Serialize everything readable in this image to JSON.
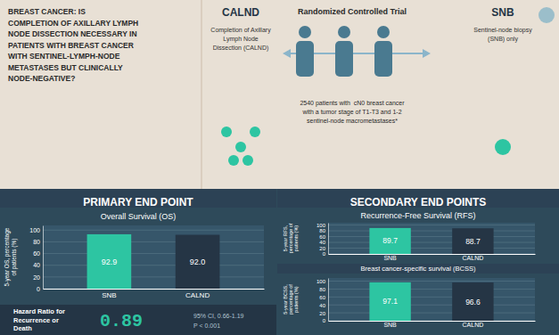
{
  "chart_data": [
    {
      "type": "bar",
      "title": "Overall Survival (OS)",
      "subtitle": "PRIMARY END POINT",
      "y_label": "5-year OS, percentage\nof patients (%)",
      "categories": [
        "SNB",
        "CALND"
      ],
      "values": [
        92.9,
        92.0
      ],
      "value_labels": [
        "92.9",
        "92.0"
      ],
      "colors": [
        "#2DC5A2",
        "#253545"
      ],
      "ylim": [
        0,
        108
      ],
      "yticks": [
        0,
        20,
        40,
        60,
        80,
        100
      ],
      "grid": true,
      "data_labels": true,
      "annotations": [
        "BREAST CANCER: IS\nCOMPLETION OF AXILLARY LYMPH\nNODE DISSECTION NECESSARY IN\nPATIENTS WITH BREAST CANCER\nWITH SENTINEL-LYMPH-NODE\nMETASTASES BUT CLINICALLY\nNODE-NEGATIVE?",
        "CALND",
        "Completion of Axillary\nLymph Node\nDissection (CALND)",
        "Randomized Controlled Trial",
        "2540 patients with  cN0 breast cancer\nwith a tumor stage of T1-T3 and 1-2\nsentinel-node macrometastases*",
        "SNB",
        "Sentinel-node biopsy\n(SNB) only",
        "Hazard Ratio for\nRecurrence or\nDeath",
        "0.89",
        "95% CI, 0.66-1.19\nP < 0.001"
      ]
    },
    {
      "type": "bar",
      "title": "Recurrence-Free Survival (RFS)",
      "subtitle": "SECONDARY END POINTS",
      "y_label": "5-year RFS,\npercentage of\npatients (%)",
      "categories": [
        "SNB",
        "CALND"
      ],
      "values": [
        89.7,
        88.7
      ],
      "value_labels": [
        "89.7",
        "88.7"
      ],
      "colors": [
        "#2DC5A2",
        "#253545"
      ],
      "ylim": [
        0,
        108
      ],
      "yticks": [
        0,
        20,
        40,
        60,
        80,
        100
      ],
      "grid": true,
      "data_labels": true
    },
    {
      "type": "bar",
      "title": "Breast cancer-specific survival (BCSS)",
      "y_label": "5-year BCSS,\npercentage of\npatients (%)",
      "categories": [
        "SNB",
        "CALND"
      ],
      "values": [
        97.1,
        96.6
      ],
      "value_labels": [
        "97.1",
        "96.6"
      ],
      "colors": [
        "#2DC5A2",
        "#253545"
      ],
      "ylim": [
        0,
        108
      ],
      "yticks": [
        0,
        20,
        40,
        60,
        80,
        100
      ],
      "grid": true,
      "data_labels": true
    }
  ]
}
